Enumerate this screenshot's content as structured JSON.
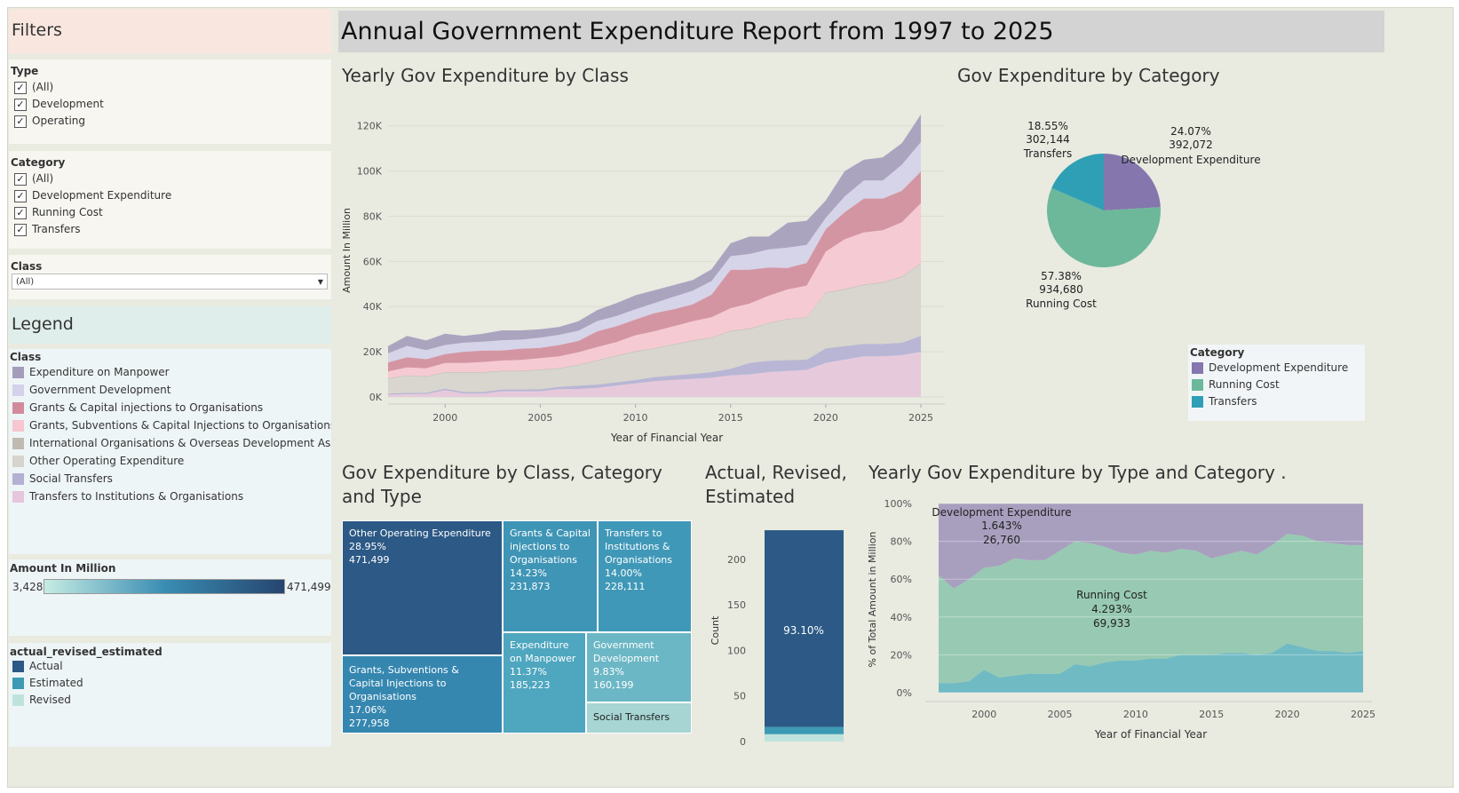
{
  "title": "Annual Government Expenditure Report from 1997 to 2025",
  "filters": {
    "header": "Filters",
    "type": {
      "label": "Type",
      "items": [
        "(All)",
        "Development",
        "Operating"
      ]
    },
    "category": {
      "label": "Category",
      "items": [
        "(All)",
        "Development Expenditure",
        "Running Cost",
        "Transfers"
      ]
    },
    "class": {
      "label": "Class",
      "selected": "(All)"
    }
  },
  "legend": {
    "header": "Legend",
    "class_label": "Class",
    "class_items": [
      {
        "label": "Expenditure on Manpower",
        "color": "#a49cbb"
      },
      {
        "label": "Government Development",
        "color": "#d4d1ea"
      },
      {
        "label": "Grants & Capital injections to Organisations",
        "color": "#d18c9c"
      },
      {
        "label": "Grants, Subventions & Capital Injections to Organisations",
        "color": "#f7c6d0"
      },
      {
        "label": "International Organisations & Overseas Development Assista..",
        "color": "#bfbab2"
      },
      {
        "label": "Other Operating Expenditure",
        "color": "#d6d4cc"
      },
      {
        "label": "Social Transfers",
        "color": "#b4b0d4"
      },
      {
        "label": "Transfers to Institutions & Organisations",
        "color": "#e6c6dc"
      }
    ],
    "amount_label": "Amount In Million",
    "amount_min": "3,428",
    "amount_max": "471,499",
    "are_label": "actual_revised_estimated",
    "are_items": [
      {
        "label": "Actual",
        "color": "#2c5985"
      },
      {
        "label": "Estimated",
        "color": "#3d9ab5"
      },
      {
        "label": "Revised",
        "color": "#bfe3dc"
      }
    ]
  },
  "colors": {
    "dev": "#8576ad",
    "running": "#6db89b",
    "transfers": "#2f9fb5"
  },
  "chart_data": [
    {
      "type": "area",
      "title": "Yearly Gov Expenditure by Class",
      "xlabel": "Year of Financial Year",
      "ylabel": "Amount In Million",
      "xlim": [
        1997,
        2025
      ],
      "ylim": [
        0,
        125000
      ],
      "x_ticks": [
        "2000",
        "2005",
        "2010",
        "2015",
        "2020",
        "2025"
      ],
      "y_ticks": [
        "0K",
        "20K",
        "40K",
        "60K",
        "80K",
        "100K",
        "120K"
      ],
      "years": [
        1997,
        1998,
        1999,
        2000,
        2001,
        2002,
        2003,
        2004,
        2005,
        2006,
        2007,
        2008,
        2009,
        2010,
        2011,
        2012,
        2013,
        2014,
        2015,
        2016,
        2017,
        2018,
        2019,
        2020,
        2021,
        2022,
        2023,
        2024,
        2025
      ],
      "series": [
        {
          "name": "Transfers to Institutions & Organisations",
          "color": "#e6c6dc",
          "values": [
            1000,
            1200,
            1300,
            3000,
            1500,
            1500,
            2500,
            2500,
            2500,
            3500,
            3500,
            4000,
            5000,
            6000,
            7000,
            7500,
            8000,
            8500,
            9500,
            10000,
            11000,
            11500,
            12000,
            15000,
            16500,
            18000,
            18000,
            18500,
            20000
          ]
        },
        {
          "name": "Social Transfers",
          "color": "#b4b0d4",
          "values": [
            500,
            600,
            600,
            700,
            700,
            700,
            800,
            800,
            900,
            1000,
            1500,
            1500,
            1500,
            1500,
            1800,
            2000,
            2200,
            2500,
            3000,
            5000,
            5000,
            4800,
            4500,
            6500,
            6000,
            5500,
            5500,
            5500,
            7000
          ]
        },
        {
          "name": "Other Operating Expenditure",
          "color": "#d6d4cc",
          "values": [
            6500,
            7500,
            7000,
            7000,
            8500,
            8500,
            8000,
            8000,
            8500,
            8000,
            9000,
            10500,
            11500,
            12500,
            12500,
            13500,
            14500,
            15000,
            16500,
            15000,
            16500,
            18000,
            18500,
            24500,
            25000,
            26000,
            27000,
            29000,
            32000
          ]
        },
        {
          "name": "International Organisations & Overseas Development Assistance",
          "color": "#bfbab2",
          "values": [
            300,
            300,
            300,
            300,
            300,
            300,
            300,
            300,
            300,
            300,
            300,
            300,
            300,
            300,
            300,
            300,
            300,
            300,
            300,
            300,
            300,
            300,
            300,
            300,
            300,
            300,
            300,
            300,
            300
          ]
        },
        {
          "name": "Grants, Subventions & Capital Injections to Organisations",
          "color": "#f7c6d0",
          "values": [
            3000,
            3500,
            3500,
            4000,
            4000,
            4500,
            4500,
            4800,
            5000,
            5200,
            5500,
            5800,
            6000,
            7000,
            7500,
            8000,
            8500,
            9000,
            10000,
            11000,
            12000,
            13000,
            14000,
            18000,
            22000,
            23000,
            23000,
            24000,
            26500
          ]
        },
        {
          "name": "Grants & Capital injections to Organisations",
          "color": "#d18c9c",
          "values": [
            4000,
            4500,
            4000,
            4000,
            5000,
            5000,
            4500,
            5000,
            4500,
            5000,
            5000,
            7000,
            7000,
            7000,
            8000,
            7500,
            7500,
            10000,
            17000,
            15000,
            12500,
            9500,
            10000,
            10000,
            12000,
            15000,
            14000,
            14000,
            14000
          ]
        },
        {
          "name": "Government Development",
          "color": "#d4d1ea",
          "values": [
            4000,
            5000,
            4000,
            4000,
            4000,
            4000,
            4500,
            4000,
            4500,
            4500,
            4500,
            4500,
            4500,
            4500,
            4500,
            5500,
            6000,
            6000,
            6000,
            7000,
            8000,
            9000,
            8000,
            5000,
            7000,
            8000,
            8000,
            11500,
            13000
          ]
        },
        {
          "name": "Expenditure on Manpower",
          "color": "#a49cbb",
          "values": [
            3200,
            4400,
            4300,
            5000,
            3000,
            3500,
            4400,
            4100,
            3800,
            3500,
            4200,
            4900,
            5700,
            6200,
            5600,
            5200,
            4700,
            5200,
            5700,
            7700,
            5700,
            11000,
            10700,
            7700,
            11200,
            9200,
            10200,
            9500,
            12200
          ]
        }
      ]
    },
    {
      "type": "pie",
      "title": "Gov Expenditure by Category",
      "slices": [
        {
          "label": "Development Expenditure",
          "pct": "24.07%",
          "value": "392,072",
          "share": 24.07,
          "color": "#8576ad"
        },
        {
          "label": "Running Cost",
          "pct": "57.38%",
          "value": "934,680",
          "share": 57.38,
          "color": "#6db89b"
        },
        {
          "label": "Transfers",
          "pct": "18.55%",
          "value": "302,144",
          "share": 18.55,
          "color": "#2f9fb5"
        }
      ],
      "legend_title": "Category",
      "legend_items": [
        "Development Expenditure",
        "Running Cost",
        "Transfers"
      ]
    },
    {
      "type": "table",
      "title": "Gov Expenditure by Class, Category and Type",
      "cells": [
        {
          "name": "Other Operating Expenditure",
          "pct": "28.95%",
          "value": "471,499",
          "color": "#2c5985"
        },
        {
          "name": "Grants & Capital injections to Organisations",
          "pct": "14.23%",
          "value": "231,873",
          "color": "#3f95b6"
        },
        {
          "name": "Transfers to Institutions & Organisations",
          "pct": "14.00%",
          "value": "228,111",
          "color": "#4098b8"
        },
        {
          "name": "Grants, Subventions & Capital Injections to Organisations",
          "pct": "17.06%",
          "value": "277,958",
          "color": "#3687b0"
        },
        {
          "name": "Expenditure on Manpower",
          "pct": "11.37%",
          "value": "185,223",
          "color": "#4ea6bf"
        },
        {
          "name": "Government Development",
          "pct": "9.83%",
          "value": "160,199",
          "color": "#6cb7c5"
        },
        {
          "name": "Social Transfers",
          "pct": "",
          "value": "",
          "color": "#a6d5d3"
        }
      ]
    },
    {
      "type": "bar",
      "title": "Actual, Revised, Estimated",
      "ylabel": "Count",
      "ylim": [
        0,
        235
      ],
      "y_ticks": [
        "0",
        "50",
        "100",
        "150",
        "200"
      ],
      "segments": [
        {
          "name": "Revised",
          "value": 8,
          "color": "#bfe3dc"
        },
        {
          "name": "Estimated",
          "value": 8,
          "color": "#3d9ab5"
        },
        {
          "name": "Actual",
          "value": 216,
          "color": "#2c5985"
        }
      ],
      "label": "93.10%"
    },
    {
      "type": "area",
      "title": "Yearly Gov Expenditure by Type and Category .",
      "xlabel": "Year of Financial Year",
      "ylabel": "% of Total Amount in Million",
      "xlim": [
        1997,
        2025
      ],
      "ylim": [
        0,
        100
      ],
      "x_ticks": [
        "2000",
        "2005",
        "2010",
        "2015",
        "2020",
        "2025"
      ],
      "y_ticks": [
        "0%",
        "20%",
        "40%",
        "60%",
        "80%",
        "100%"
      ],
      "years": [
        1997,
        1998,
        1999,
        2000,
        2001,
        2002,
        2003,
        2004,
        2005,
        2006,
        2007,
        2008,
        2009,
        2010,
        2011,
        2012,
        2013,
        2014,
        2015,
        2016,
        2017,
        2018,
        2019,
        2020,
        2021,
        2022,
        2023,
        2024,
        2025
      ],
      "transfers_pct": [
        5,
        5,
        6,
        12,
        8,
        9,
        10,
        10,
        10,
        15,
        14,
        16,
        17,
        17,
        18,
        18,
        20,
        20,
        20,
        21,
        21,
        20,
        21,
        26,
        24,
        22,
        22,
        21,
        22
      ],
      "running_cum_pct": [
        62,
        55,
        60,
        66,
        67,
        71,
        70,
        70,
        75,
        80,
        79,
        77,
        74,
        73,
        75,
        74,
        76,
        75,
        71,
        73,
        75,
        73,
        78,
        84,
        83,
        80,
        79,
        78,
        78
      ],
      "labels": [
        {
          "name": "Development Expenditure",
          "pct": "1.643%",
          "value": "26,760"
        },
        {
          "name": "Running Cost",
          "pct": "4.293%",
          "value": "69,933"
        }
      ]
    }
  ]
}
